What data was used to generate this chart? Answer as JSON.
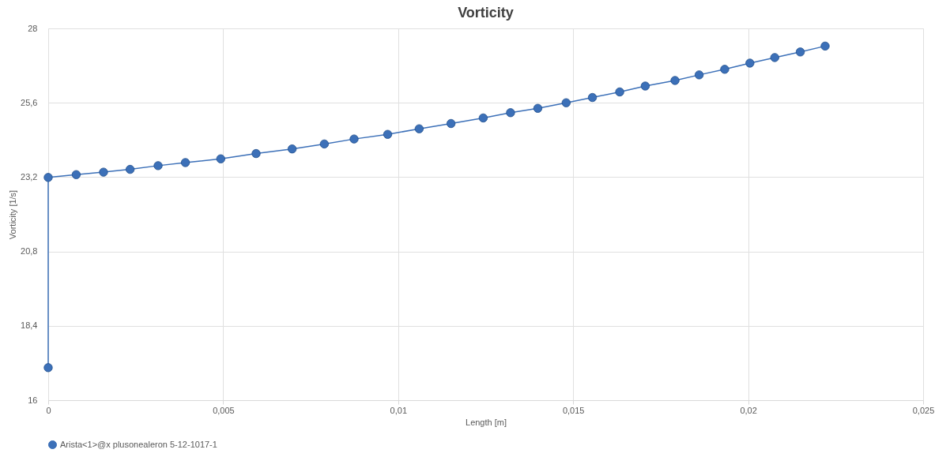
{
  "chart_data": {
    "type": "line",
    "title": "Vorticity",
    "xlabel": "Length [m]",
    "ylabel": "Vorticity [1/s]",
    "x": [
      0,
      0,
      0.0008,
      0.00158,
      0.00234,
      0.00314,
      0.00392,
      0.00493,
      0.00594,
      0.00697,
      0.00789,
      0.00874,
      0.0097,
      0.0106,
      0.01151,
      0.01243,
      0.01321,
      0.01399,
      0.0148,
      0.01555,
      0.01633,
      0.01706,
      0.01791,
      0.0186,
      0.01933,
      0.02005,
      0.02076,
      0.02149,
      0.0222
    ],
    "series": [
      {
        "name": "Arista<1>@x plusonealeron 5-12-1017-1",
        "color": "#3c70b8",
        "values": [
          17.05,
          23.19,
          23.28,
          23.36,
          23.45,
          23.57,
          23.67,
          23.79,
          23.96,
          24.11,
          24.27,
          24.43,
          24.58,
          24.76,
          24.93,
          25.11,
          25.28,
          25.42,
          25.6,
          25.77,
          25.95,
          26.14,
          26.32,
          26.5,
          26.68,
          26.88,
          27.06,
          27.24,
          27.43
        ]
      }
    ],
    "xlim": [
      0,
      0.025
    ],
    "xticks": [
      0,
      {
        "value": 0.005,
        "label": "0,005"
      },
      {
        "value": 0.01,
        "label": "0,01"
      },
      {
        "value": 0.015,
        "label": "0,015"
      },
      {
        "value": 0.02,
        "label": "0,02"
      },
      {
        "value": 0.025,
        "label": "0,025"
      }
    ],
    "ylim": [
      16,
      28
    ],
    "yticks": [
      16,
      {
        "value": 18.4,
        "label": "18,4"
      },
      {
        "value": 20.8,
        "label": "20,8"
      },
      {
        "value": 23.2,
        "label": "23,2"
      },
      {
        "value": 25.6,
        "label": "25,6"
      },
      28
    ],
    "grid": true,
    "legend": "bottom",
    "marker": "circle",
    "line_style": "solid"
  }
}
